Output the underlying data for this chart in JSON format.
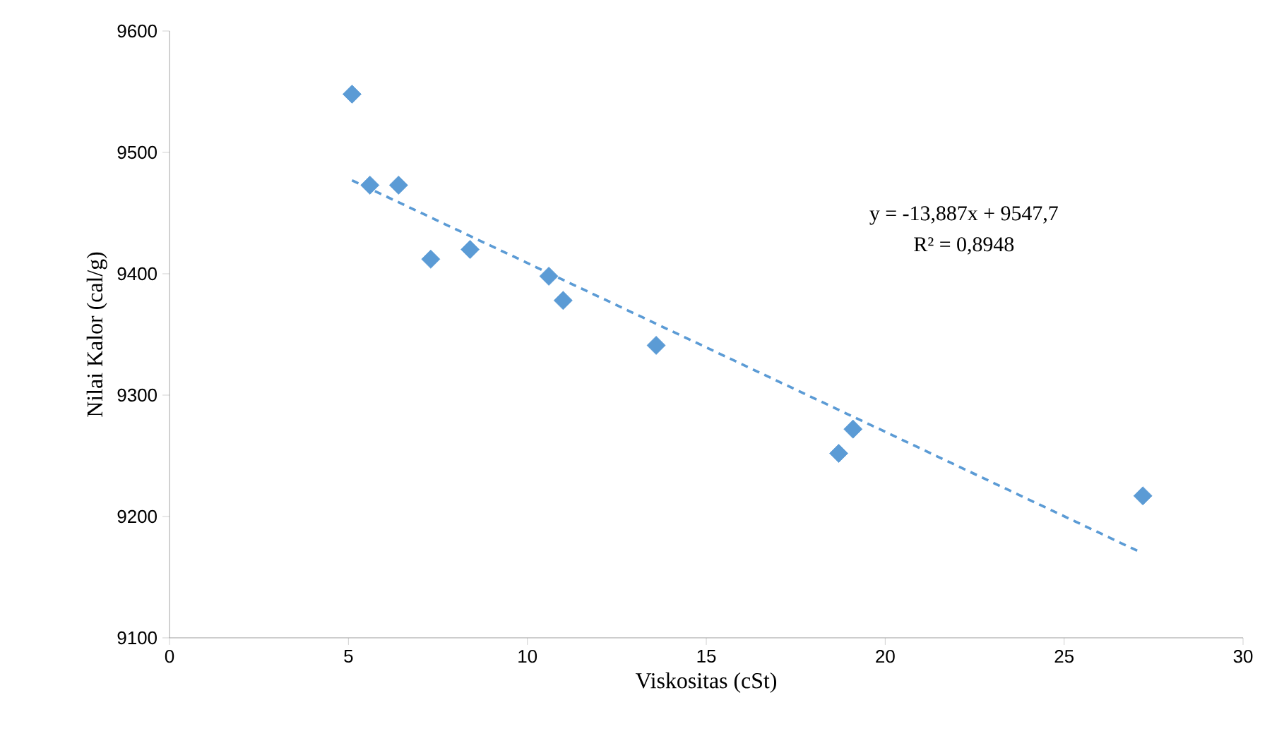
{
  "chart_data": {
    "type": "scatter",
    "xlabel": "Viskositas (cSt)",
    "ylabel": "Nilai Kalor (cal/g)",
    "xlim": [
      0,
      30
    ],
    "ylim": [
      9100,
      9600
    ],
    "xticks": [
      0,
      5,
      10,
      15,
      20,
      25,
      30
    ],
    "yticks": [
      9100,
      9200,
      9300,
      9400,
      9500,
      9600
    ],
    "grid": false,
    "marker": "diamond",
    "series": [
      {
        "color": "#5b9bd5",
        "x": [
          5.1,
          5.6,
          6.4,
          7.3,
          8.4,
          10.6,
          11.0,
          13.6,
          18.7,
          19.1,
          27.2
        ],
        "values": [
          9548,
          9473,
          9473,
          9412,
          9420,
          9398,
          9378,
          9341,
          9252,
          9272,
          9217
        ]
      },
      {
        "type": "line",
        "color": "#5b9bd5",
        "line_style": "dashed",
        "marker": "none",
        "x": [
          5.1,
          27.1
        ],
        "values": [
          9477,
          9171
        ]
      }
    ],
    "annotations": [
      "y = -13,887x + 9547,7",
      "R² = 0,8948"
    ]
  }
}
